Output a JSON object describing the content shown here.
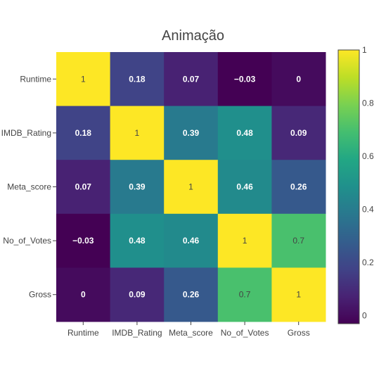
{
  "chart_data": {
    "type": "heatmap",
    "title": "Animação",
    "x_categories": [
      "Runtime",
      "IMDB_Rating",
      "Meta_score",
      "No_of_Votes",
      "Gross"
    ],
    "y_categories": [
      "Runtime",
      "IMDB_Rating",
      "Meta_score",
      "No_of_Votes",
      "Gross"
    ],
    "values": [
      [
        1,
        0.18,
        0.07,
        -0.03,
        0
      ],
      [
        0.18,
        1,
        0.39,
        0.48,
        0.09
      ],
      [
        0.07,
        0.39,
        1,
        0.46,
        0.26
      ],
      [
        -0.03,
        0.48,
        0.46,
        1,
        0.7
      ],
      [
        0,
        0.09,
        0.26,
        0.7,
        1
      ]
    ],
    "cell_labels": [
      [
        "1",
        "0.18",
        "0.07",
        "−0.03",
        "0"
      ],
      [
        "0.18",
        "1",
        "0.39",
        "0.48",
        "0.09"
      ],
      [
        "0.07",
        "0.39",
        "1",
        "0.46",
        "0.26"
      ],
      [
        "−0.03",
        "0.48",
        "0.46",
        "1",
        "0.7"
      ],
      [
        "0",
        "0.09",
        "0.26",
        "0.7",
        "1"
      ]
    ],
    "colorscale": "Viridis",
    "zrange": [
      -0.03,
      1
    ],
    "colorbar_ticks": [
      0,
      0.2,
      0.4,
      0.6,
      0.8,
      1
    ],
    "colorbar_tick_labels": [
      "0",
      "0.2",
      "0.4",
      "0.6",
      "0.8",
      "1"
    ]
  }
}
